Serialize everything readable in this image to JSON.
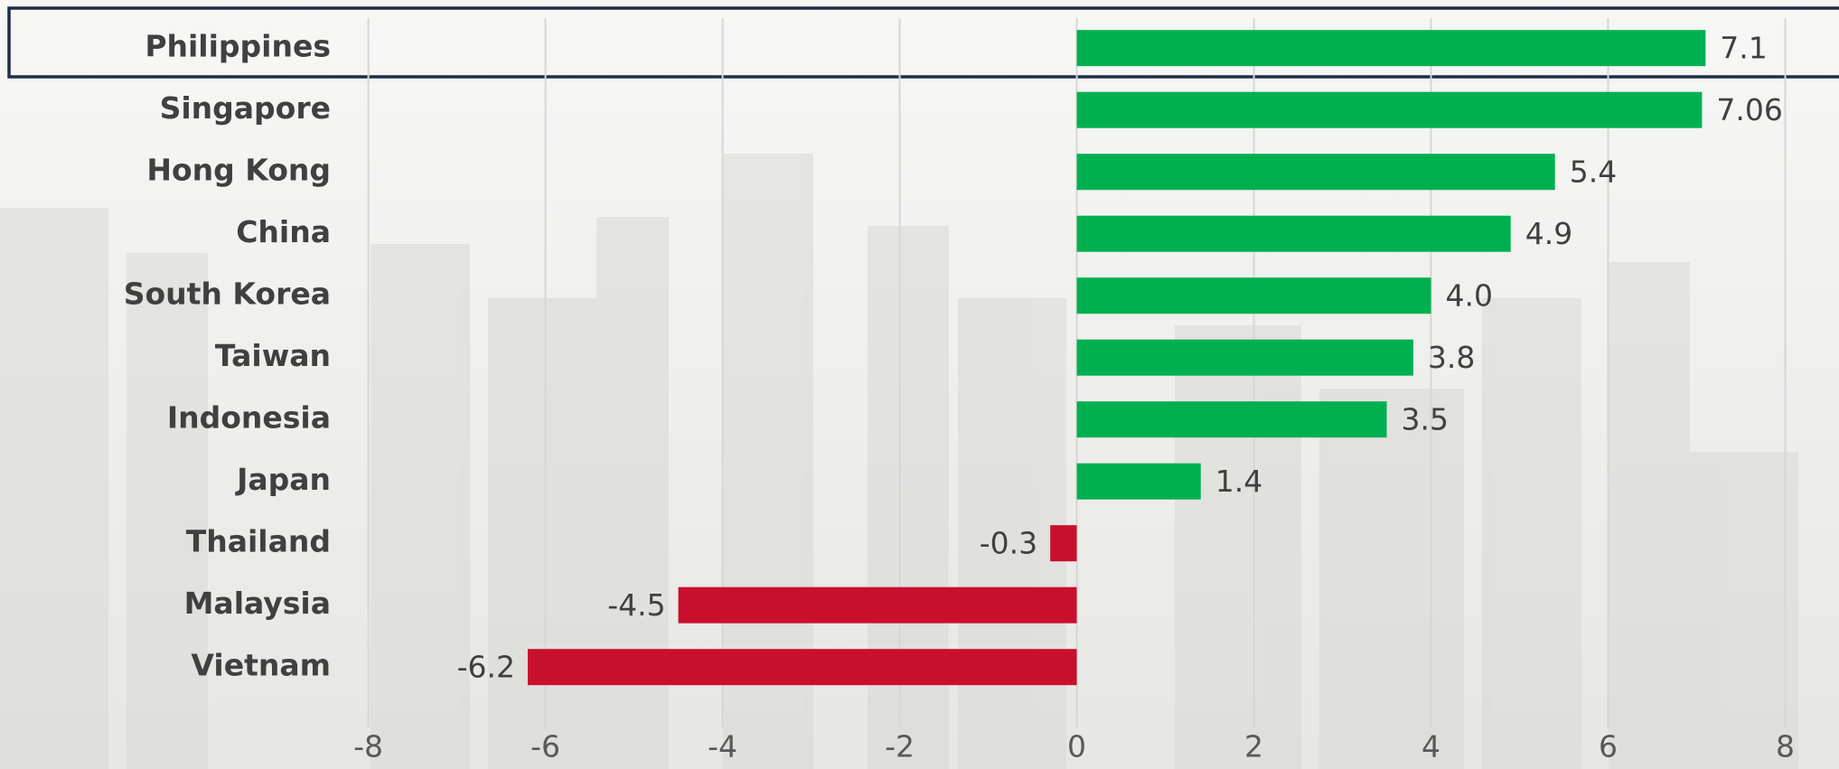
{
  "chart_data": {
    "type": "hbar",
    "categories": [
      "Philippines",
      "Singapore",
      "Hong Kong",
      "China",
      "South Korea",
      "Taiwan",
      "Indonesia",
      "Japan",
      "Thailand",
      "Malaysia",
      "Vietnam"
    ],
    "values": [
      7.1,
      7.06,
      5.4,
      4.9,
      4.0,
      3.8,
      3.5,
      1.4,
      -0.3,
      -4.5,
      -6.2
    ],
    "value_labels": [
      "7.1",
      "7.06",
      "5.4",
      "4.9",
      "4.0",
      "3.8",
      "3.5",
      "1.4",
      "-0.3",
      "-4.5",
      "-6.2"
    ],
    "color": "#00b050",
    "negative_color": "#c8102e",
    "xlim": [
      -8,
      8
    ],
    "xticks": [
      -8,
      -6,
      -4,
      -2,
      0,
      2,
      4,
      6,
      8
    ],
    "grid": true
  }
}
